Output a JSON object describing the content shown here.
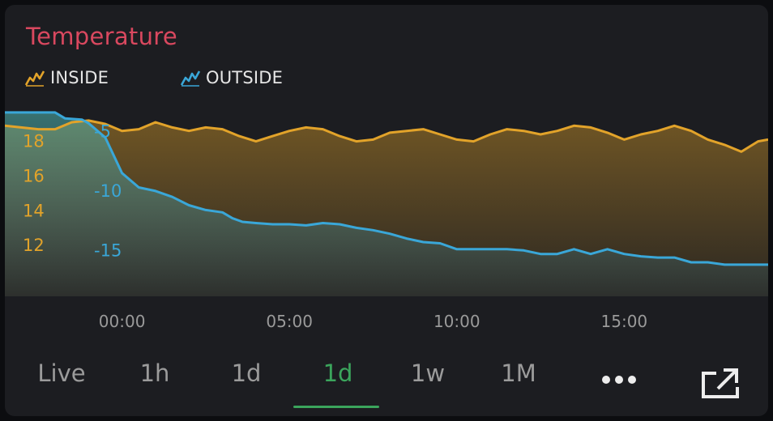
{
  "widget": {
    "title": "Temperature",
    "colors": {
      "title": "#d9485f",
      "inside": "#e2a32a",
      "outside": "#3aa7d8",
      "active_tab": "#3ba55c"
    }
  },
  "legend": [
    {
      "label": "INSIDE",
      "icon": "chart-line-icon"
    },
    {
      "label": "OUTSIDE",
      "icon": "chart-line-icon"
    }
  ],
  "tabs": [
    {
      "label": "Live",
      "active": false
    },
    {
      "label": "1h",
      "active": false
    },
    {
      "label": "1d",
      "active": false
    },
    {
      "label": "1d",
      "active": true
    },
    {
      "label": "1w",
      "active": false
    },
    {
      "label": "1M",
      "active": false
    }
  ],
  "actions": {
    "more_icon": "more-dots-icon",
    "export_icon": "open-external-icon"
  },
  "chart_data": {
    "type": "area",
    "x_ticks": [
      "00:00",
      "05:00",
      "10:00",
      "15:00"
    ],
    "x_range": [
      -3.5,
      19.3
    ],
    "axes": [
      {
        "id": "inside",
        "ticks": [
          "18",
          "16",
          "14",
          "12"
        ],
        "tick_values": [
          18,
          16,
          14,
          12
        ],
        "range": [
          10,
          19.8
        ]
      },
      {
        "id": "outside",
        "ticks": [
          "-5",
          "-10",
          "-15"
        ],
        "tick_values": [
          -5,
          -10,
          -15
        ],
        "range": [
          -17.5,
          -3.2
        ]
      }
    ],
    "series": [
      {
        "name": "INSIDE",
        "axis": "inside",
        "x": [
          -3.5,
          -2.5,
          -2,
          -1.5,
          -1,
          -0.5,
          0,
          0.5,
          1,
          1.5,
          2,
          2.5,
          3,
          3.5,
          4,
          4.5,
          5,
          5.5,
          6,
          6.5,
          7,
          7.5,
          8,
          8.5,
          9,
          9.5,
          10,
          10.5,
          11,
          11.5,
          12,
          12.5,
          13,
          13.5,
          14,
          14.5,
          15,
          15.5,
          16,
          16.5,
          17,
          17.5,
          18,
          18.5,
          19,
          19.3
        ],
        "values": [
          18.9,
          18.7,
          18.7,
          19.1,
          19.2,
          19.0,
          18.6,
          18.7,
          19.1,
          18.8,
          18.6,
          18.8,
          18.7,
          18.3,
          18.0,
          18.3,
          18.6,
          18.8,
          18.7,
          18.3,
          18.0,
          18.1,
          18.5,
          18.6,
          18.7,
          18.4,
          18.1,
          18.0,
          18.4,
          18.7,
          18.6,
          18.4,
          18.6,
          18.9,
          18.8,
          18.5,
          18.1,
          18.4,
          18.6,
          18.9,
          18.6,
          18.1,
          17.8,
          17.4,
          18.0,
          18.1
        ]
      },
      {
        "name": "OUTSIDE",
        "axis": "outside",
        "x": [
          -3.5,
          -2.5,
          -2,
          -1.7,
          -1.2,
          -1,
          -0.5,
          0,
          0.5,
          1,
          1.5,
          2,
          2.5,
          3,
          3.3,
          3.6,
          4,
          4.5,
          5,
          5.5,
          6,
          6.5,
          7,
          7.5,
          8,
          8.5,
          9,
          9.5,
          10,
          10.5,
          11,
          11.5,
          12,
          12.5,
          13,
          13.5,
          14,
          14.5,
          15,
          15.5,
          16,
          16.5,
          17,
          17.5,
          18,
          18.5,
          19,
          19.3
        ],
        "values": [
          -3.4,
          -3.4,
          -3.4,
          -3.9,
          -4.0,
          -4.3,
          -5.5,
          -8.5,
          -9.7,
          -10.0,
          -10.5,
          -11.2,
          -11.6,
          -11.8,
          -12.3,
          -12.6,
          -12.7,
          -12.8,
          -12.8,
          -12.9,
          -12.7,
          -12.8,
          -13.1,
          -13.3,
          -13.6,
          -14.0,
          -14.3,
          -14.4,
          -14.9,
          -14.9,
          -14.9,
          -14.9,
          -15.0,
          -15.3,
          -15.3,
          -14.9,
          -15.3,
          -14.9,
          -15.3,
          -15.5,
          -15.6,
          -15.6,
          -16.0,
          -16.0,
          -16.2,
          -16.2,
          -16.2,
          -16.2
        ]
      }
    ]
  }
}
